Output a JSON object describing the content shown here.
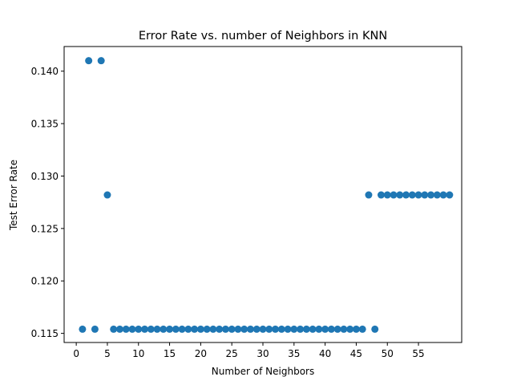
{
  "chart_data": {
    "type": "scatter",
    "title": "Error Rate vs. number of Neighbors in KNN",
    "xlabel": "Number of Neighbors",
    "ylabel": "Test Error Rate",
    "xlim": [
      -1.95,
      61.95
    ],
    "ylim": [
      0.11413,
      0.14235
    ],
    "xticks": [
      0,
      5,
      10,
      15,
      20,
      25,
      30,
      35,
      40,
      45,
      50,
      55
    ],
    "yticks": [
      0.115,
      0.12,
      0.125,
      0.13,
      0.135,
      0.14
    ],
    "ytick_labels": [
      "0.115",
      "0.120",
      "0.125",
      "0.130",
      "0.135",
      "0.140"
    ],
    "grid": false,
    "marker_color": "#1f77b4",
    "series": [
      {
        "x": [
          1,
          2,
          3,
          4,
          5,
          6,
          7,
          8,
          9,
          10,
          11,
          12,
          13,
          14,
          15,
          16,
          17,
          18,
          19,
          20,
          21,
          22,
          23,
          24,
          25,
          26,
          27,
          28,
          29,
          30,
          31,
          32,
          33,
          34,
          35,
          36,
          37,
          38,
          39,
          40,
          41,
          42,
          43,
          44,
          45,
          46,
          47,
          48,
          49,
          50,
          51,
          52,
          53,
          54,
          55,
          56,
          57,
          58,
          59,
          60
        ],
        "y": [
          0.1154,
          0.141,
          0.1154,
          0.141,
          0.1282,
          0.1154,
          0.1154,
          0.1154,
          0.1154,
          0.1154,
          0.1154,
          0.1154,
          0.1154,
          0.1154,
          0.1154,
          0.1154,
          0.1154,
          0.1154,
          0.1154,
          0.1154,
          0.1154,
          0.1154,
          0.1154,
          0.1154,
          0.1154,
          0.1154,
          0.1154,
          0.1154,
          0.1154,
          0.1154,
          0.1154,
          0.1154,
          0.1154,
          0.1154,
          0.1154,
          0.1154,
          0.1154,
          0.1154,
          0.1154,
          0.1154,
          0.1154,
          0.1154,
          0.1154,
          0.1154,
          0.1154,
          0.1154,
          0.1282,
          0.1154,
          0.1282,
          0.1282,
          0.1282,
          0.1282,
          0.1282,
          0.1282,
          0.1282,
          0.1282,
          0.1282,
          0.1282,
          0.1282,
          0.1282
        ]
      }
    ]
  }
}
